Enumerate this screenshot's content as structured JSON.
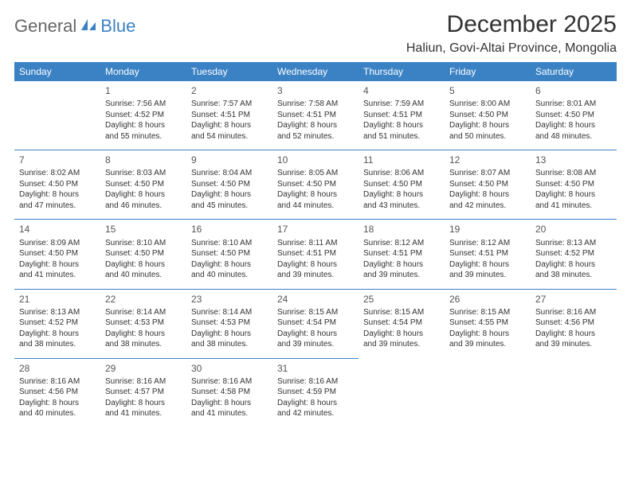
{
  "logo": {
    "general": "General",
    "blue": "Blue"
  },
  "title": "December 2025",
  "location": "Haliun, Govi-Altai Province, Mongolia",
  "colors": {
    "header_bg": "#3b82c4",
    "header_text": "#ffffff",
    "rule": "#3b82c4",
    "body_text": "#333333"
  },
  "dayHeaders": [
    "Sunday",
    "Monday",
    "Tuesday",
    "Wednesday",
    "Thursday",
    "Friday",
    "Saturday"
  ],
  "weeks": [
    [
      null,
      {
        "n": "1",
        "sr": "Sunrise: 7:56 AM",
        "ss": "Sunset: 4:52 PM",
        "d1": "Daylight: 8 hours",
        "d2": "and 55 minutes."
      },
      {
        "n": "2",
        "sr": "Sunrise: 7:57 AM",
        "ss": "Sunset: 4:51 PM",
        "d1": "Daylight: 8 hours",
        "d2": "and 54 minutes."
      },
      {
        "n": "3",
        "sr": "Sunrise: 7:58 AM",
        "ss": "Sunset: 4:51 PM",
        "d1": "Daylight: 8 hours",
        "d2": "and 52 minutes."
      },
      {
        "n": "4",
        "sr": "Sunrise: 7:59 AM",
        "ss": "Sunset: 4:51 PM",
        "d1": "Daylight: 8 hours",
        "d2": "and 51 minutes."
      },
      {
        "n": "5",
        "sr": "Sunrise: 8:00 AM",
        "ss": "Sunset: 4:50 PM",
        "d1": "Daylight: 8 hours",
        "d2": "and 50 minutes."
      },
      {
        "n": "6",
        "sr": "Sunrise: 8:01 AM",
        "ss": "Sunset: 4:50 PM",
        "d1": "Daylight: 8 hours",
        "d2": "and 48 minutes."
      }
    ],
    [
      {
        "n": "7",
        "sr": "Sunrise: 8:02 AM",
        "ss": "Sunset: 4:50 PM",
        "d1": "Daylight: 8 hours",
        "d2": "and 47 minutes."
      },
      {
        "n": "8",
        "sr": "Sunrise: 8:03 AM",
        "ss": "Sunset: 4:50 PM",
        "d1": "Daylight: 8 hours",
        "d2": "and 46 minutes."
      },
      {
        "n": "9",
        "sr": "Sunrise: 8:04 AM",
        "ss": "Sunset: 4:50 PM",
        "d1": "Daylight: 8 hours",
        "d2": "and 45 minutes."
      },
      {
        "n": "10",
        "sr": "Sunrise: 8:05 AM",
        "ss": "Sunset: 4:50 PM",
        "d1": "Daylight: 8 hours",
        "d2": "and 44 minutes."
      },
      {
        "n": "11",
        "sr": "Sunrise: 8:06 AM",
        "ss": "Sunset: 4:50 PM",
        "d1": "Daylight: 8 hours",
        "d2": "and 43 minutes."
      },
      {
        "n": "12",
        "sr": "Sunrise: 8:07 AM",
        "ss": "Sunset: 4:50 PM",
        "d1": "Daylight: 8 hours",
        "d2": "and 42 minutes."
      },
      {
        "n": "13",
        "sr": "Sunrise: 8:08 AM",
        "ss": "Sunset: 4:50 PM",
        "d1": "Daylight: 8 hours",
        "d2": "and 41 minutes."
      }
    ],
    [
      {
        "n": "14",
        "sr": "Sunrise: 8:09 AM",
        "ss": "Sunset: 4:50 PM",
        "d1": "Daylight: 8 hours",
        "d2": "and 41 minutes."
      },
      {
        "n": "15",
        "sr": "Sunrise: 8:10 AM",
        "ss": "Sunset: 4:50 PM",
        "d1": "Daylight: 8 hours",
        "d2": "and 40 minutes."
      },
      {
        "n": "16",
        "sr": "Sunrise: 8:10 AM",
        "ss": "Sunset: 4:50 PM",
        "d1": "Daylight: 8 hours",
        "d2": "and 40 minutes."
      },
      {
        "n": "17",
        "sr": "Sunrise: 8:11 AM",
        "ss": "Sunset: 4:51 PM",
        "d1": "Daylight: 8 hours",
        "d2": "and 39 minutes."
      },
      {
        "n": "18",
        "sr": "Sunrise: 8:12 AM",
        "ss": "Sunset: 4:51 PM",
        "d1": "Daylight: 8 hours",
        "d2": "and 39 minutes."
      },
      {
        "n": "19",
        "sr": "Sunrise: 8:12 AM",
        "ss": "Sunset: 4:51 PM",
        "d1": "Daylight: 8 hours",
        "d2": "and 39 minutes."
      },
      {
        "n": "20",
        "sr": "Sunrise: 8:13 AM",
        "ss": "Sunset: 4:52 PM",
        "d1": "Daylight: 8 hours",
        "d2": "and 38 minutes."
      }
    ],
    [
      {
        "n": "21",
        "sr": "Sunrise: 8:13 AM",
        "ss": "Sunset: 4:52 PM",
        "d1": "Daylight: 8 hours",
        "d2": "and 38 minutes."
      },
      {
        "n": "22",
        "sr": "Sunrise: 8:14 AM",
        "ss": "Sunset: 4:53 PM",
        "d1": "Daylight: 8 hours",
        "d2": "and 38 minutes."
      },
      {
        "n": "23",
        "sr": "Sunrise: 8:14 AM",
        "ss": "Sunset: 4:53 PM",
        "d1": "Daylight: 8 hours",
        "d2": "and 38 minutes."
      },
      {
        "n": "24",
        "sr": "Sunrise: 8:15 AM",
        "ss": "Sunset: 4:54 PM",
        "d1": "Daylight: 8 hours",
        "d2": "and 39 minutes."
      },
      {
        "n": "25",
        "sr": "Sunrise: 8:15 AM",
        "ss": "Sunset: 4:54 PM",
        "d1": "Daylight: 8 hours",
        "d2": "and 39 minutes."
      },
      {
        "n": "26",
        "sr": "Sunrise: 8:15 AM",
        "ss": "Sunset: 4:55 PM",
        "d1": "Daylight: 8 hours",
        "d2": "and 39 minutes."
      },
      {
        "n": "27",
        "sr": "Sunrise: 8:16 AM",
        "ss": "Sunset: 4:56 PM",
        "d1": "Daylight: 8 hours",
        "d2": "and 39 minutes."
      }
    ],
    [
      {
        "n": "28",
        "sr": "Sunrise: 8:16 AM",
        "ss": "Sunset: 4:56 PM",
        "d1": "Daylight: 8 hours",
        "d2": "and 40 minutes."
      },
      {
        "n": "29",
        "sr": "Sunrise: 8:16 AM",
        "ss": "Sunset: 4:57 PM",
        "d1": "Daylight: 8 hours",
        "d2": "and 41 minutes."
      },
      {
        "n": "30",
        "sr": "Sunrise: 8:16 AM",
        "ss": "Sunset: 4:58 PM",
        "d1": "Daylight: 8 hours",
        "d2": "and 41 minutes."
      },
      {
        "n": "31",
        "sr": "Sunrise: 8:16 AM",
        "ss": "Sunset: 4:59 PM",
        "d1": "Daylight: 8 hours",
        "d2": "and 42 minutes."
      },
      null,
      null,
      null
    ]
  ]
}
